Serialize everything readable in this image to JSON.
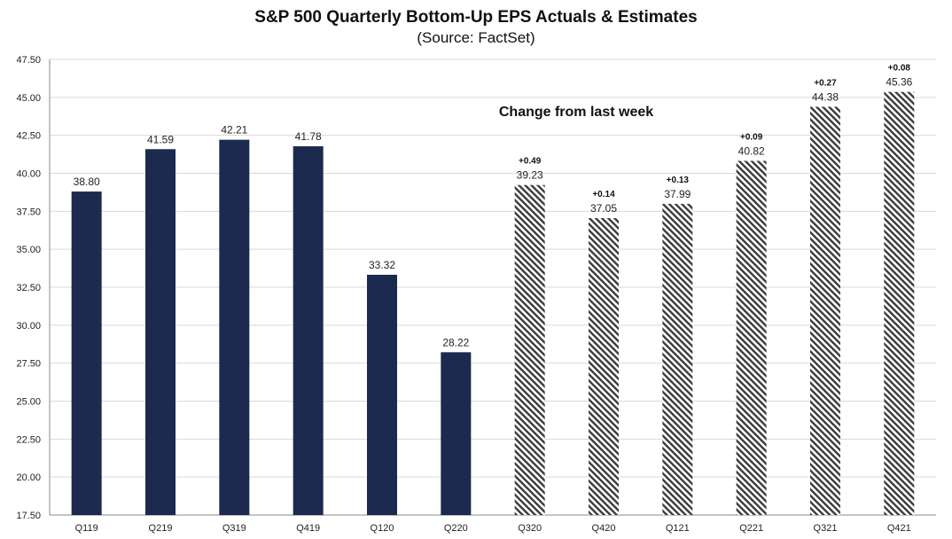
{
  "chart_data": {
    "type": "bar",
    "title": "S&P 500 Quarterly Bottom-Up EPS Actuals & Estimates",
    "subtitle": "(Source: FactSet)",
    "xlabel": "",
    "ylabel": "",
    "ylim": [
      17.5,
      47.5
    ],
    "yticks": [
      "17.50",
      "20.00",
      "22.50",
      "25.00",
      "27.50",
      "30.00",
      "32.50",
      "35.00",
      "37.50",
      "40.00",
      "42.50",
      "45.00",
      "47.50"
    ],
    "grid": true,
    "categories": [
      "Q119",
      "Q219",
      "Q319",
      "Q419",
      "Q120",
      "Q220",
      "Q320",
      "Q420",
      "Q121",
      "Q221",
      "Q321",
      "Q421"
    ],
    "values": [
      38.8,
      41.59,
      42.21,
      41.78,
      33.32,
      28.22,
      39.23,
      37.05,
      37.99,
      40.82,
      44.38,
      45.36
    ],
    "value_labels": [
      "38.80",
      "41.59",
      "42.21",
      "41.78",
      "33.32",
      "28.22",
      "39.23",
      "37.05",
      "37.99",
      "40.82",
      "44.38",
      "45.36"
    ],
    "bar_style": [
      "actual",
      "actual",
      "actual",
      "actual",
      "actual",
      "actual",
      "estimate",
      "estimate",
      "estimate",
      "estimate",
      "estimate",
      "estimate"
    ],
    "changes": [
      "",
      "",
      "",
      "",
      "",
      "",
      "+0.49",
      "+0.14",
      "+0.13",
      "+0.09",
      "+0.27",
      "+0.08"
    ],
    "annotation": "Change from last week",
    "colors": {
      "actual": "#1b2a4e",
      "estimate_stripe": "#333333",
      "grid": "#d9d9d9"
    }
  }
}
